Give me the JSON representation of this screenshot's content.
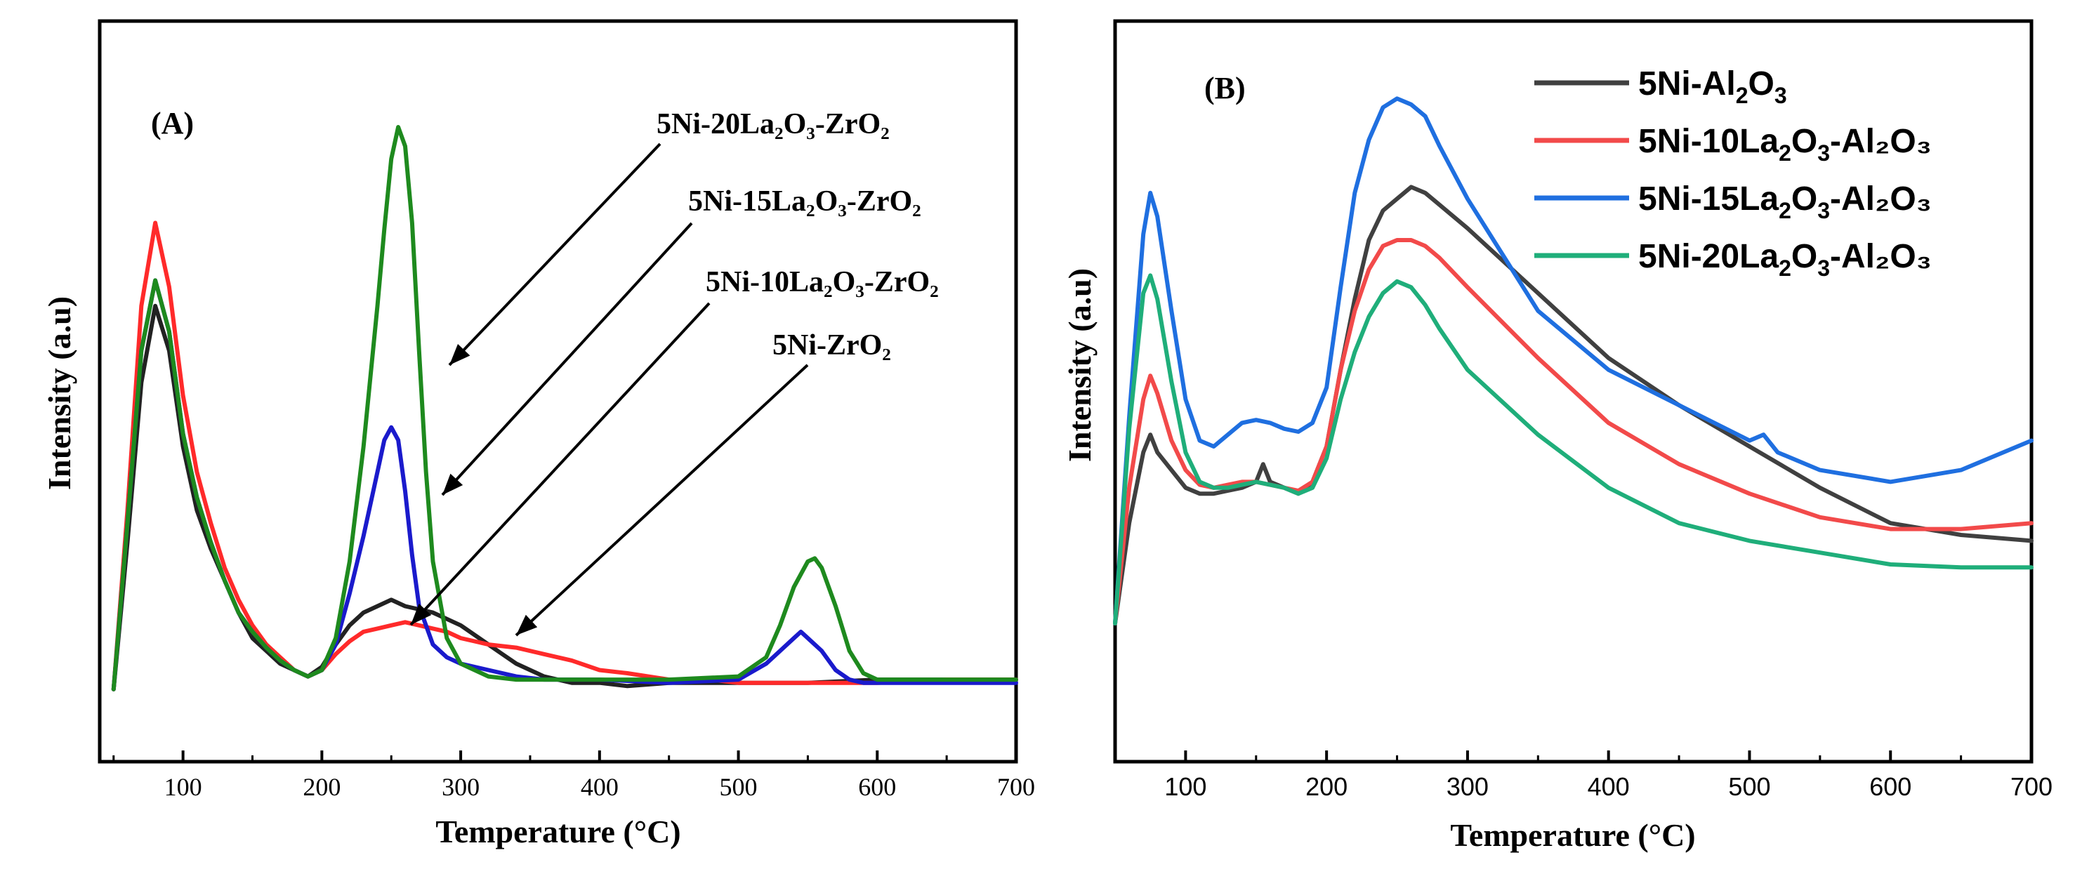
{
  "colors": {
    "black": "#222222",
    "red": "#ff2a2a",
    "blue": "#1a1acc",
    "green": "#1e8a1e",
    "b_gray": "#404040",
    "b_red": "#f24a4a",
    "b_blue": "#1f6fe0",
    "b_green": "#1fae7a"
  },
  "chart_data": [
    {
      "type": "line",
      "panel_label": "(A)",
      "xlabel": "Temperature (°C)",
      "ylabel": "Intensity (a.u)",
      "xlim": [
        40,
        700
      ],
      "ylim": [
        0,
        1
      ],
      "xticks": [
        "100",
        "200",
        "300",
        "400",
        "500",
        "600",
        "700"
      ],
      "annotations": {
        "a1": "5Ni-20La₂O₃-ZrO₂",
        "a2": "5Ni-15La₂O₃-ZrO₂",
        "a3": "5Ni-10La₂O₃-ZrO₂",
        "a4": "5Ni-ZrO₂"
      },
      "series": [
        {
          "name": "5Ni-ZrO2",
          "color": "black",
          "x": [
            50,
            60,
            70,
            80,
            90,
            100,
            110,
            120,
            130,
            140,
            150,
            160,
            170,
            180,
            190,
            200,
            210,
            220,
            230,
            240,
            250,
            260,
            270,
            280,
            290,
            300,
            310,
            320,
            330,
            340,
            350,
            360,
            380,
            400,
            420,
            450,
            480,
            500,
            550,
            600,
            650,
            700
          ],
          "y": [
            0.02,
            0.25,
            0.5,
            0.62,
            0.55,
            0.4,
            0.3,
            0.24,
            0.19,
            0.14,
            0.1,
            0.08,
            0.06,
            0.05,
            0.04,
            0.055,
            0.09,
            0.12,
            0.14,
            0.15,
            0.16,
            0.15,
            0.145,
            0.14,
            0.13,
            0.12,
            0.105,
            0.09,
            0.075,
            0.06,
            0.05,
            0.04,
            0.03,
            0.03,
            0.025,
            0.03,
            0.03,
            0.03,
            0.03,
            0.035,
            0.035,
            0.035
          ]
        },
        {
          "name": "5Ni-10La2O3-ZrO2",
          "color": "red",
          "x": [
            50,
            60,
            70,
            80,
            90,
            100,
            110,
            120,
            130,
            140,
            150,
            160,
            170,
            180,
            190,
            200,
            210,
            220,
            230,
            240,
            250,
            260,
            270,
            280,
            290,
            300,
            310,
            320,
            340,
            360,
            380,
            400,
            420,
            450,
            480,
            500,
            550,
            600,
            650,
            700
          ],
          "y": [
            0.02,
            0.3,
            0.62,
            0.75,
            0.65,
            0.48,
            0.36,
            0.28,
            0.21,
            0.16,
            0.12,
            0.09,
            0.07,
            0.05,
            0.04,
            0.05,
            0.075,
            0.095,
            0.11,
            0.115,
            0.12,
            0.125,
            0.12,
            0.115,
            0.11,
            0.1,
            0.095,
            0.09,
            0.085,
            0.075,
            0.065,
            0.05,
            0.045,
            0.035,
            0.035,
            0.03,
            0.03,
            0.03,
            0.035,
            0.035
          ]
        },
        {
          "name": "5Ni-15La2O3-ZrO2",
          "color": "blue",
          "x": [
            50,
            60,
            70,
            80,
            90,
            100,
            110,
            120,
            130,
            140,
            150,
            160,
            170,
            180,
            190,
            200,
            210,
            220,
            230,
            240,
            245,
            250,
            255,
            260,
            265,
            270,
            280,
            290,
            300,
            320,
            340,
            360,
            380,
            400,
            450,
            500,
            520,
            530,
            540,
            545,
            550,
            560,
            570,
            580,
            590,
            600,
            650,
            700
          ],
          "y": [
            0.02,
            0.28,
            0.55,
            0.66,
            0.58,
            0.42,
            0.32,
            0.25,
            0.19,
            0.14,
            0.11,
            0.085,
            0.065,
            0.05,
            0.04,
            0.05,
            0.09,
            0.17,
            0.26,
            0.36,
            0.41,
            0.43,
            0.41,
            0.33,
            0.23,
            0.15,
            0.09,
            0.07,
            0.06,
            0.05,
            0.04,
            0.035,
            0.035,
            0.035,
            0.03,
            0.035,
            0.06,
            0.08,
            0.1,
            0.11,
            0.1,
            0.08,
            0.05,
            0.035,
            0.03,
            0.03,
            0.03,
            0.03
          ]
        },
        {
          "name": "5Ni-20La2O3-ZrO2",
          "color": "green",
          "x": [
            50,
            60,
            70,
            80,
            90,
            100,
            110,
            120,
            130,
            140,
            150,
            160,
            170,
            180,
            190,
            200,
            210,
            220,
            230,
            240,
            245,
            250,
            255,
            260,
            265,
            270,
            275,
            280,
            290,
            300,
            320,
            340,
            360,
            400,
            450,
            500,
            520,
            530,
            540,
            550,
            555,
            560,
            570,
            580,
            590,
            600,
            650,
            700
          ],
          "y": [
            0.02,
            0.28,
            0.55,
            0.66,
            0.58,
            0.42,
            0.32,
            0.25,
            0.19,
            0.14,
            0.11,
            0.085,
            0.065,
            0.05,
            0.04,
            0.05,
            0.1,
            0.22,
            0.4,
            0.62,
            0.74,
            0.85,
            0.9,
            0.87,
            0.75,
            0.55,
            0.36,
            0.22,
            0.1,
            0.06,
            0.04,
            0.035,
            0.035,
            0.035,
            0.035,
            0.04,
            0.07,
            0.12,
            0.18,
            0.22,
            0.225,
            0.21,
            0.15,
            0.08,
            0.045,
            0.035,
            0.035,
            0.035
          ]
        }
      ]
    },
    {
      "type": "line",
      "panel_label": "(B)",
      "xlabel": "Temperature (°C)",
      "ylabel": "Intensity (a.u)",
      "xlim": [
        50,
        700
      ],
      "ylim": [
        0,
        1
      ],
      "xticks": [
        "100",
        "200",
        "300",
        "400",
        "500",
        "600",
        "700"
      ],
      "legend_position": "top-right",
      "series": [
        {
          "name": "5Ni-Al2O3",
          "label_main": "5Ni-Al",
          "label_sub1": "2",
          "label_mid": "O",
          "label_sub2": "3",
          "label_rest": "",
          "color": "b_gray",
          "x": [
            50,
            60,
            70,
            75,
            80,
            90,
            100,
            110,
            120,
            130,
            140,
            150,
            155,
            160,
            170,
            180,
            190,
            200,
            210,
            220,
            230,
            240,
            250,
            260,
            270,
            280,
            300,
            350,
            400,
            450,
            500,
            550,
            600,
            650,
            700
          ],
          "y": [
            0.05,
            0.22,
            0.34,
            0.37,
            0.34,
            0.31,
            0.28,
            0.27,
            0.27,
            0.275,
            0.28,
            0.29,
            0.32,
            0.29,
            0.28,
            0.27,
            0.29,
            0.35,
            0.48,
            0.6,
            0.7,
            0.75,
            0.77,
            0.79,
            0.78,
            0.76,
            0.72,
            0.61,
            0.5,
            0.42,
            0.35,
            0.28,
            0.22,
            0.2,
            0.19
          ]
        },
        {
          "name": "5Ni-10La2O3-Al2O3",
          "label_main": "5Ni-10La",
          "label_sub1": "2",
          "label_mid": "O",
          "label_sub2": "3",
          "label_rest": "-Al₂O₃",
          "color": "b_red",
          "x": [
            50,
            60,
            70,
            75,
            80,
            90,
            100,
            110,
            120,
            130,
            140,
            150,
            160,
            170,
            180,
            190,
            200,
            210,
            220,
            230,
            240,
            250,
            260,
            270,
            280,
            300,
            350,
            400,
            450,
            500,
            550,
            600,
            650,
            700
          ],
          "y": [
            0.05,
            0.28,
            0.43,
            0.47,
            0.44,
            0.36,
            0.31,
            0.285,
            0.28,
            0.285,
            0.29,
            0.29,
            0.285,
            0.28,
            0.275,
            0.29,
            0.35,
            0.48,
            0.58,
            0.65,
            0.69,
            0.7,
            0.7,
            0.69,
            0.67,
            0.62,
            0.5,
            0.39,
            0.32,
            0.27,
            0.23,
            0.21,
            0.21,
            0.22
          ]
        },
        {
          "name": "5Ni-15La2O3-Al2O3",
          "label_main": "5Ni-15La",
          "label_sub1": "2",
          "label_mid": "O",
          "label_sub2": "3",
          "label_rest": "-Al₂O₃",
          "color": "b_blue",
          "x": [
            50,
            60,
            70,
            75,
            80,
            90,
            100,
            110,
            120,
            130,
            140,
            150,
            160,
            170,
            180,
            190,
            200,
            210,
            220,
            230,
            240,
            250,
            260,
            270,
            280,
            300,
            350,
            400,
            450,
            500,
            510,
            520,
            550,
            600,
            650,
            700
          ],
          "y": [
            0.05,
            0.4,
            0.71,
            0.78,
            0.74,
            0.58,
            0.43,
            0.36,
            0.35,
            0.37,
            0.39,
            0.395,
            0.39,
            0.38,
            0.375,
            0.39,
            0.45,
            0.62,
            0.78,
            0.87,
            0.925,
            0.94,
            0.93,
            0.91,
            0.86,
            0.77,
            0.58,
            0.48,
            0.42,
            0.36,
            0.37,
            0.34,
            0.31,
            0.29,
            0.31,
            0.36
          ]
        },
        {
          "name": "5Ni-20La2O3-Al2O3",
          "label_main": "5Ni-20La",
          "label_sub1": "2",
          "label_mid": "O",
          "label_sub2": "3",
          "label_rest": "-Al₂O₃",
          "color": "b_green",
          "x": [
            50,
            60,
            70,
            75,
            80,
            90,
            100,
            110,
            120,
            130,
            140,
            150,
            160,
            170,
            180,
            190,
            200,
            210,
            220,
            230,
            240,
            250,
            260,
            270,
            280,
            300,
            350,
            400,
            450,
            500,
            550,
            600,
            650,
            700
          ],
          "y": [
            0.05,
            0.38,
            0.61,
            0.64,
            0.6,
            0.46,
            0.34,
            0.29,
            0.28,
            0.28,
            0.285,
            0.29,
            0.285,
            0.28,
            0.27,
            0.28,
            0.33,
            0.43,
            0.51,
            0.57,
            0.61,
            0.63,
            0.62,
            0.59,
            0.55,
            0.48,
            0.37,
            0.28,
            0.22,
            0.19,
            0.17,
            0.15,
            0.145,
            0.145
          ]
        }
      ]
    }
  ]
}
